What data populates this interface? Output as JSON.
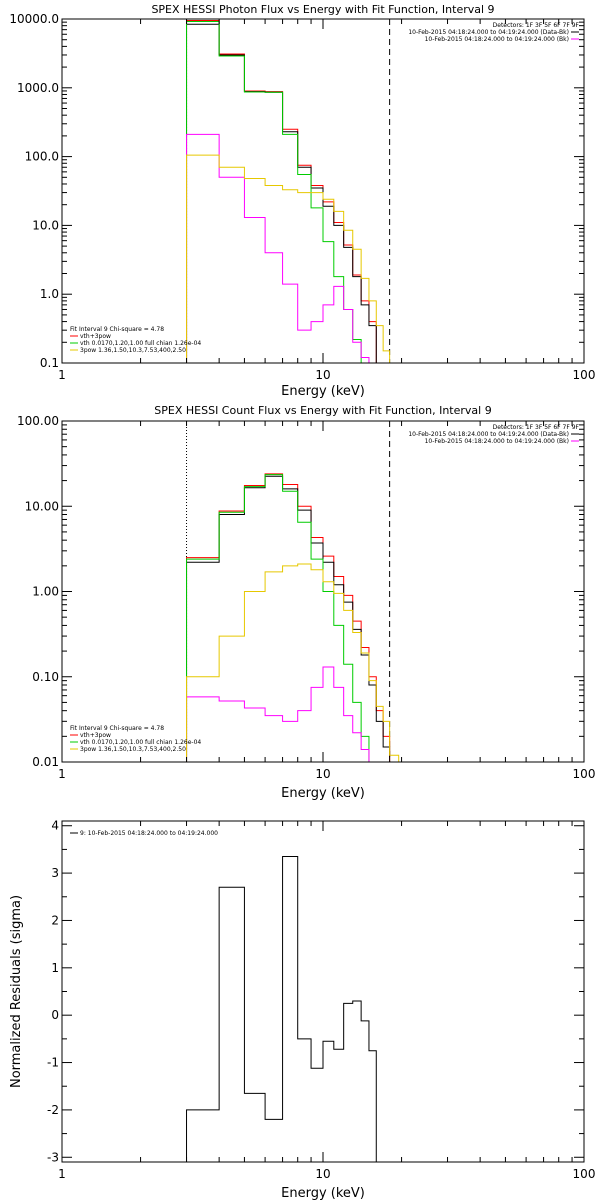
{
  "figure": {
    "background": "#ffffff",
    "line_color": "#000000"
  },
  "chart_data": [
    {
      "type": "line",
      "title": "SPEX HESSI Photon Flux vs Energy with Fit Function, Interval 9",
      "xlabel": "Energy (keV)",
      "ylabel": "",
      "xscale": "log",
      "yscale": "log",
      "xlim": [
        1,
        100
      ],
      "ylim": [
        0.1,
        10000
      ],
      "x_tick_labels": [
        "1",
        "10",
        "100"
      ],
      "y_tick_labels": [
        "10000.0",
        "1000.0",
        "100.0",
        "10.0",
        "1.0",
        "0.1"
      ],
      "y_tick_values": [
        10000,
        1000,
        100,
        10,
        1,
        0.1
      ],
      "y_label_decimals": 1,
      "fit_range_markers": {
        "low_dotted": 3.0,
        "high_dashed": 18.0,
        "colors": [
          "#000000",
          "#000000"
        ]
      },
      "bin_edges": [
        3.0,
        4.0,
        5.0,
        6.0,
        7.0,
        8.0,
        9.0,
        10.0,
        11.0,
        12.0,
        13.0,
        14.0,
        15.0,
        16.0,
        17.0,
        18.0,
        19.5,
        21.0
      ],
      "series": [
        {
          "color": "#ff0000",
          "values": [
            9500,
            3100,
            900,
            880,
            250,
            75,
            38,
            22,
            11,
            5.2,
            1.9,
            0.8,
            0.4,
            null,
            null,
            null,
            null
          ]
        },
        {
          "color": "#000000",
          "values": [
            8400,
            3000,
            880,
            860,
            230,
            70,
            35,
            19,
            10,
            4.8,
            1.8,
            0.7,
            0.35,
            null,
            null,
            null,
            null
          ]
        },
        {
          "color": "#00cc00",
          "values": [
            9200,
            2900,
            870,
            860,
            210,
            55,
            18,
            5.8,
            1.8,
            0.6,
            0.22,
            0.1,
            null,
            null,
            null,
            null,
            null
          ]
        },
        {
          "color": "#ff00ff",
          "values": [
            210,
            50,
            13,
            4,
            1.4,
            0.3,
            0.4,
            0.7,
            1.3,
            0.6,
            0.2,
            0.12,
            0.1,
            null,
            null,
            null,
            null
          ]
        },
        {
          "color": "#e6c800",
          "values": [
            105,
            70,
            48,
            38,
            33,
            30,
            30,
            24,
            16,
            8.5,
            4.5,
            1.7,
            0.8,
            0.35,
            0.15,
            null,
            null
          ]
        }
      ],
      "legend_left": [
        {
          "text": "Fit Interval  9    Chi-square = 4.78",
          "color": "#000000",
          "swatch": false
        },
        {
          "text": "vth+3pow",
          "color": "#ff0000",
          "swatch": true
        },
        {
          "text": "vth 0.0170,1.20,1.00  full chian 1.26e-04",
          "color": "#00cc00",
          "swatch": true
        },
        {
          "text": "3pow 1.36,1.50,10.3,7.53,400,2.50",
          "color": "#e6c800",
          "swatch": true
        }
      ],
      "legend_right": [
        {
          "text": "Detectors: 1F 3F 5F 6F 7F 9F",
          "color": "#000000",
          "swatch": false
        },
        {
          "text": "10-Feb-2015 04:18:24.000 to 04:19:24.000 (Data-Bk)",
          "color": "#000000",
          "swatch": true
        },
        {
          "text": "10-Feb-2015 04:18:24.000 to 04:19:24.000 (Bk)",
          "color": "#ff00ff",
          "swatch": true
        }
      ]
    },
    {
      "type": "line",
      "title": "SPEX HESSI Count Flux vs Energy with Fit Function, Interval 9",
      "xlabel": "Energy (keV)",
      "ylabel": "",
      "xscale": "log",
      "yscale": "log",
      "xlim": [
        1,
        100
      ],
      "ylim": [
        0.01,
        100
      ],
      "x_tick_labels": [
        "1",
        "10",
        "100"
      ],
      "y_tick_labels": [
        "100.00",
        "10.00",
        "1.00",
        "0.10",
        "0.01"
      ],
      "y_tick_values": [
        100,
        10,
        1,
        0.1,
        0.01
      ],
      "y_label_decimals": 2,
      "fit_range_markers": {
        "low_dotted": 3.0,
        "high_dashed": 18.0,
        "colors": [
          "#000000",
          "#000000"
        ]
      },
      "bin_edges": [
        3.0,
        4.0,
        5.0,
        6.0,
        7.0,
        8.0,
        9.0,
        10.0,
        11.0,
        12.0,
        13.0,
        14.0,
        15.0,
        16.0,
        17.0,
        18.0,
        19.5,
        21.0
      ],
      "series": [
        {
          "color": "#ff0000",
          "values": [
            2.5,
            8.8,
            17.5,
            24,
            18,
            10,
            4.3,
            2.6,
            1.5,
            0.9,
            0.45,
            0.22,
            0.1,
            0.04,
            0.02,
            0.01,
            null
          ]
        },
        {
          "color": "#000000",
          "values": [
            2.2,
            8.0,
            16.5,
            22.5,
            16,
            9.0,
            3.7,
            2.2,
            1.2,
            0.75,
            0.36,
            0.18,
            0.08,
            0.03,
            0.015,
            null,
            null
          ]
        },
        {
          "color": "#00cc00",
          "values": [
            2.4,
            8.5,
            17,
            23.5,
            15,
            6.5,
            2.4,
            1.0,
            0.4,
            0.14,
            0.05,
            0.02,
            0.01,
            null,
            null,
            null,
            null
          ]
        },
        {
          "color": "#ff00ff",
          "values": [
            0.058,
            0.052,
            0.043,
            0.035,
            0.03,
            0.04,
            0.075,
            0.13,
            0.075,
            0.035,
            0.022,
            0.014,
            0.01,
            null,
            null,
            null,
            null
          ]
        },
        {
          "color": "#e6c800",
          "values": [
            0.1,
            0.3,
            1.0,
            1.7,
            2.0,
            2.1,
            1.8,
            1.3,
            0.95,
            0.6,
            0.33,
            0.19,
            0.09,
            0.045,
            0.03,
            0.012,
            null
          ]
        }
      ],
      "legend_left": [
        {
          "text": "Fit Interval  9    Chi-square = 4.78",
          "color": "#000000",
          "swatch": false
        },
        {
          "text": "vth+3pow",
          "color": "#ff0000",
          "swatch": true
        },
        {
          "text": "vth 0.0170,1.20,1.00  full chian 1.26e-04",
          "color": "#00cc00",
          "swatch": true
        },
        {
          "text": "3pow 1.36,1.50,10.3,7.53,400,2.50",
          "color": "#e6c800",
          "swatch": true
        }
      ],
      "legend_right": [
        {
          "text": "Detectors: 1F 3F 5F 6F 7F 9F",
          "color": "#000000",
          "swatch": false
        },
        {
          "text": "10-Feb-2015 04:18:24.000 to 04:19:24.000 (Data-Bk)",
          "color": "#000000",
          "swatch": true
        },
        {
          "text": "10-Feb-2015 04:18:24.000 to 04:19:24.000 (Bk)",
          "color": "#ff00ff",
          "swatch": true
        }
      ]
    },
    {
      "type": "line",
      "title": "",
      "xlabel": "Energy (keV)",
      "ylabel": "Normalized Residuals (sigma)",
      "xscale": "log",
      "yscale": "linear",
      "xlim": [
        1,
        100
      ],
      "ylim": [
        -3.1,
        4.1
      ],
      "x_tick_labels": [
        "1",
        "10",
        "100"
      ],
      "y_tick_labels": [
        "4",
        "3",
        "2",
        "1",
        "0",
        "-1",
        "-2",
        "-3"
      ],
      "y_tick_values": [
        4,
        3,
        2,
        1,
        0,
        -1,
        -2,
        -3
      ],
      "y_label_decimals": 0,
      "fit_range_markers": null,
      "bin_edges": [
        3.0,
        4.0,
        5.0,
        6.0,
        7.0,
        8.0,
        9.0,
        10.0,
        11.0,
        12.0,
        13.0,
        14.0,
        15.0,
        16.0,
        17.0,
        18.0
      ],
      "series": [
        {
          "color": "#000000",
          "values": [
            -2.0,
            2.7,
            -1.65,
            -2.2,
            3.35,
            -0.5,
            -1.12,
            -0.55,
            -0.72,
            0.25,
            0.3,
            -0.12,
            -0.75,
            null,
            null
          ]
        }
      ],
      "legend_left": [
        {
          "text": "9: 10-Feb-2015 04:18:24.000 to 04:19:24.000",
          "color": "#000000",
          "swatch": true
        }
      ],
      "legend_right": []
    }
  ]
}
